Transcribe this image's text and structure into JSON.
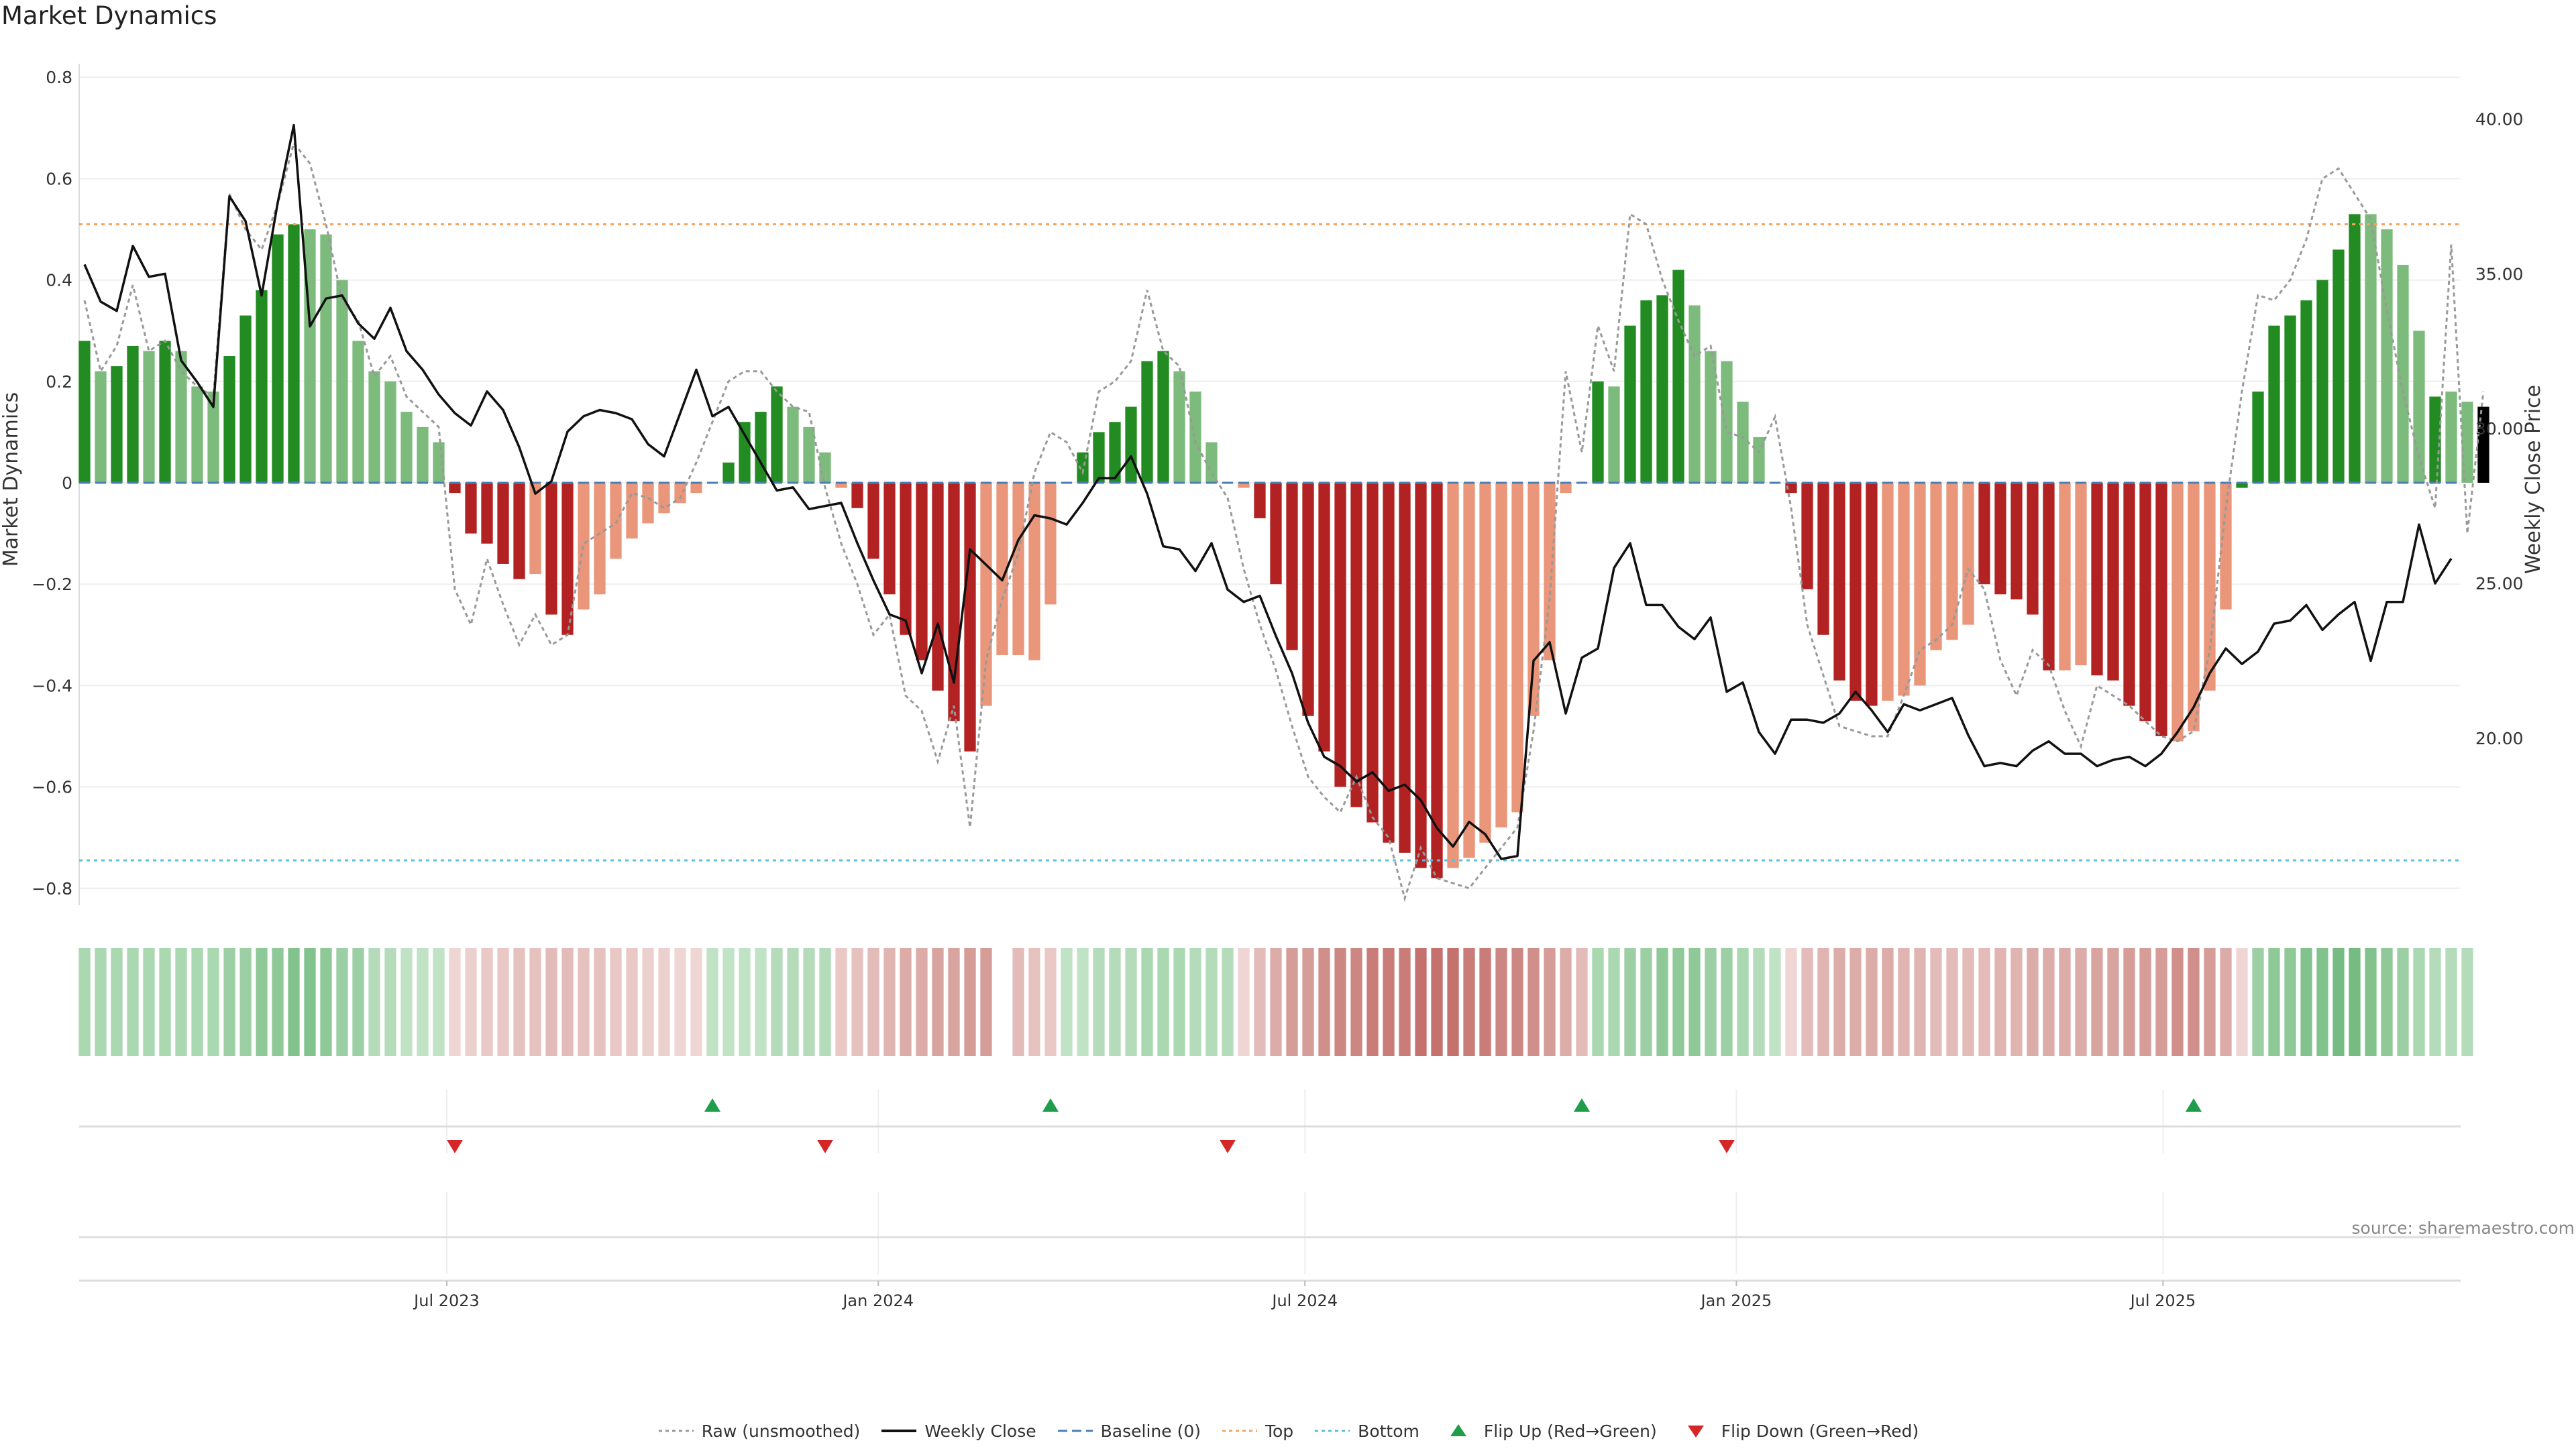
{
  "chart_data": {
    "type": "bar+line",
    "title": "Market Dynamics",
    "ylabel": "Market Dynamics",
    "y2label": "Weekly Close Price",
    "ylim": [
      -0.84,
      0.84
    ],
    "y2lim": [
      14.5,
      42.0
    ],
    "yticks": [
      0.8,
      0.6,
      0.4,
      0.2,
      0,
      -0.2,
      -0.4,
      -0.6,
      -0.8
    ],
    "ytick_labels": [
      "0.8",
      "0.6",
      "0.4",
      "0.2",
      "0",
      "−0.2",
      "−0.4",
      "−0.6",
      "−0.8"
    ],
    "y2ticks": [
      40,
      35,
      30,
      25,
      20
    ],
    "y2tick_labels": [
      "40.00",
      "35.00",
      "30.00",
      "25.00",
      "20.00"
    ],
    "x_start_week": 0,
    "x_end_week": 147,
    "xticks": [
      {
        "label": "Jul 2023",
        "week": 22.5
      },
      {
        "label": "Jan 2024",
        "week": 49.3
      },
      {
        "label": "Jul 2024",
        "week": 75.8
      },
      {
        "label": "Jan 2025",
        "week": 102.6
      },
      {
        "label": "Jul 2025",
        "week": 129.1
      }
    ],
    "top_level": 0.51,
    "bottom_level": -0.745,
    "baseline": 0,
    "bar_values": [
      0.28,
      0.22,
      0.23,
      0.27,
      0.26,
      0.28,
      0.26,
      0.19,
      0.18,
      0.25,
      0.33,
      0.38,
      0.49,
      0.51,
      0.5,
      0.49,
      0.4,
      0.28,
      0.22,
      0.2,
      0.14,
      0.11,
      0.08,
      -0.02,
      -0.1,
      -0.12,
      -0.16,
      -0.19,
      -0.18,
      -0.26,
      -0.3,
      -0.25,
      -0.22,
      -0.15,
      -0.11,
      -0.08,
      -0.06,
      -0.04,
      -0.02,
      0,
      0.04,
      0.12,
      0.14,
      0.19,
      0.15,
      0.11,
      0.06,
      -0.01,
      -0.05,
      -0.15,
      -0.22,
      -0.3,
      -0.35,
      -0.41,
      -0.47,
      -0.53,
      -0.44,
      -0.34,
      -0.34,
      -0.35,
      -0.24,
      0,
      0.06,
      0.1,
      0.12,
      0.15,
      0.24,
      0.26,
      0.22,
      0.18,
      0.08,
      0,
      -0.01,
      -0.07,
      -0.2,
      -0.33,
      -0.46,
      -0.53,
      -0.6,
      -0.64,
      -0.67,
      -0.71,
      -0.73,
      -0.76,
      -0.78,
      -0.76,
      -0.74,
      -0.71,
      -0.68,
      -0.65,
      -0.46,
      -0.35,
      -0.02,
      0,
      0.2,
      0.19,
      0.31,
      0.36,
      0.37,
      0.42,
      0.35,
      0.26,
      0.24,
      0.16,
      0.09,
      0,
      -0.02,
      -0.21,
      -0.3,
      -0.39,
      -0.43,
      -0.44,
      -0.43,
      -0.42,
      -0.4,
      -0.33,
      -0.31,
      -0.28,
      -0.2,
      -0.22,
      -0.23,
      -0.26,
      -0.37,
      -0.37,
      -0.36,
      -0.38,
      -0.39,
      -0.44,
      -0.47,
      -0.5,
      -0.51,
      -0.49,
      -0.41,
      -0.25,
      -0.01,
      0.18,
      0.31,
      0.33,
      0.36,
      0.4,
      0.46,
      0.53,
      0.53,
      0.5,
      0.43,
      0.3,
      0.17,
      0.18,
      0.16,
      0.15
    ],
    "bar_colors": [
      "#228b22",
      "#7dbb7d",
      "#228b22",
      "#228b22",
      "#7dbb7d",
      "#228b22",
      "#7dbb7d",
      "#7dbb7d",
      "#7dbb7d",
      "#228b22",
      "#228b22",
      "#228b22",
      "#228b22",
      "#228b22",
      "#7dbb7d",
      "#7dbb7d",
      "#7dbb7d",
      "#7dbb7d",
      "#7dbb7d",
      "#7dbb7d",
      "#7dbb7d",
      "#7dbb7d",
      "#7dbb7d",
      "#b22222",
      "#b22222",
      "#b22222",
      "#b22222",
      "#b22222",
      "#e9967a",
      "#b22222",
      "#b22222",
      "#e9967a",
      "#e9967a",
      "#e9967a",
      "#e9967a",
      "#e9967a",
      "#e9967a",
      "#e9967a",
      "#e9967a",
      "#e9967a",
      "#228b22",
      "#228b22",
      "#228b22",
      "#228b22",
      "#7dbb7d",
      "#7dbb7d",
      "#7dbb7d",
      "#e9967a",
      "#b22222",
      "#b22222",
      "#b22222",
      "#b22222",
      "#b22222",
      "#b22222",
      "#b22222",
      "#b22222",
      "#e9967a",
      "#e9967a",
      "#e9967a",
      "#e9967a",
      "#e9967a",
      "#e9967a",
      "#228b22",
      "#228b22",
      "#228b22",
      "#228b22",
      "#228b22",
      "#228b22",
      "#7dbb7d",
      "#7dbb7d",
      "#7dbb7d",
      "#7dbb7d",
      "#e9967a",
      "#b22222",
      "#b22222",
      "#b22222",
      "#b22222",
      "#b22222",
      "#b22222",
      "#b22222",
      "#b22222",
      "#b22222",
      "#b22222",
      "#b22222",
      "#b22222",
      "#e9967a",
      "#e9967a",
      "#e9967a",
      "#e9967a",
      "#e9967a",
      "#e9967a",
      "#e9967a",
      "#e9967a",
      "#e9967a",
      "#228b22",
      "#7dbb7d",
      "#228b22",
      "#228b22",
      "#228b22",
      "#228b22",
      "#7dbb7d",
      "#7dbb7d",
      "#7dbb7d",
      "#7dbb7d",
      "#7dbb7d",
      "#7dbb7d",
      "#b22222",
      "#b22222",
      "#b22222",
      "#b22222",
      "#b22222",
      "#b22222",
      "#e9967a",
      "#e9967a",
      "#e9967a",
      "#e9967a",
      "#e9967a",
      "#e9967a",
      "#b22222",
      "#b22222",
      "#b22222",
      "#b22222",
      "#b22222",
      "#e9967a",
      "#e9967a",
      "#b22222",
      "#b22222",
      "#b22222",
      "#b22222",
      "#b22222",
      "#e9967a",
      "#e9967a",
      "#e9967a",
      "#e9967a",
      "#228b22",
      "#228b22",
      "#228b22",
      "#228b22",
      "#228b22",
      "#228b22",
      "#228b22",
      "#228b22",
      "#7dbb7d",
      "#7dbb7d",
      "#7dbb7d",
      "#7dbb7d",
      "#228b22",
      "#7dbb7d",
      "#7dbb7d"
    ],
    "raw_values": [
      0.36,
      0.22,
      0.27,
      0.39,
      0.26,
      0.28,
      0.22,
      0.19,
      0.17,
      0.57,
      0.5,
      0.46,
      0.55,
      0.67,
      0.63,
      0.51,
      0.36,
      0.32,
      0.21,
      0.25,
      0.17,
      0.14,
      0.11,
      -0.21,
      -0.28,
      -0.15,
      -0.24,
      -0.32,
      -0.26,
      -0.32,
      -0.3,
      -0.12,
      -0.1,
      -0.08,
      -0.02,
      -0.03,
      -0.05,
      -0.03,
      0.04,
      0.12,
      0.2,
      0.22,
      0.22,
      0.18,
      0.15,
      0.14,
      -0.01,
      -0.12,
      -0.2,
      -0.3,
      -0.26,
      -0.42,
      -0.45,
      -0.55,
      -0.44,
      -0.68,
      -0.35,
      -0.23,
      -0.14,
      0.02,
      0.1,
      0.08,
      0.02,
      0.18,
      0.2,
      0.24,
      0.38,
      0.26,
      0.23,
      0.08,
      0.02,
      -0.03,
      -0.17,
      -0.28,
      -0.37,
      -0.48,
      -0.58,
      -0.62,
      -0.65,
      -0.58,
      -0.66,
      -0.7,
      -0.82,
      -0.72,
      -0.78,
      -0.79,
      -0.8,
      -0.76,
      -0.72,
      -0.68,
      -0.49,
      -0.23,
      0.22,
      0.06,
      0.31,
      0.22,
      0.53,
      0.51,
      0.4,
      0.32,
      0.25,
      0.27,
      0.1,
      0.09,
      0.06,
      0.13,
      -0.05,
      -0.28,
      -0.38,
      -0.48,
      -0.49,
      -0.5,
      -0.5,
      -0.42,
      -0.33,
      -0.31,
      -0.28,
      -0.17,
      -0.21,
      -0.35,
      -0.42,
      -0.33,
      -0.36,
      -0.45,
      -0.52,
      -0.4,
      -0.42,
      -0.44,
      -0.47,
      -0.5,
      -0.51,
      -0.49,
      -0.33,
      -0.05,
      0.18,
      0.37,
      0.36,
      0.4,
      0.48,
      0.6,
      0.62,
      0.57,
      0.52,
      0.34,
      0.18,
      0.05,
      -0.05,
      0.47,
      -0.1,
      0.18
    ],
    "close_values": [
      35.3,
      34.1,
      33.8,
      35.9,
      34.9,
      35.0,
      32.2,
      31.5,
      30.7,
      37.5,
      36.7,
      34.3,
      37.3,
      39.8,
      33.3,
      34.2,
      34.3,
      33.4,
      32.9,
      33.9,
      32.5,
      31.9,
      31.1,
      30.5,
      30.1,
      31.2,
      30.6,
      29.4,
      27.9,
      28.3,
      29.9,
      30.4,
      30.6,
      30.5,
      30.3,
      29.5,
      29.1,
      30.5,
      31.9,
      30.4,
      30.7,
      29.8,
      28.9,
      28.0,
      28.1,
      27.4,
      27.5,
      27.6,
      26.3,
      25.1,
      24.0,
      23.8,
      22.1,
      23.7,
      21.8,
      26.1,
      25.6,
      25.1,
      26.4,
      27.2,
      27.1,
      26.9,
      27.6,
      28.4,
      28.4,
      29.1,
      27.9,
      26.2,
      26.1,
      25.4,
      26.3,
      24.8,
      24.4,
      24.6,
      23.3,
      22.1,
      20.5,
      19.4,
      19.1,
      18.6,
      18.9,
      18.3,
      18.5,
      18.0,
      17.1,
      16.5,
      17.3,
      16.9,
      16.1,
      16.2,
      22.5,
      23.1,
      20.8,
      22.6,
      22.9,
      25.5,
      26.3,
      24.3,
      24.3,
      23.6,
      23.2,
      23.9,
      21.5,
      21.8,
      20.2,
      19.5,
      20.6,
      20.6,
      20.5,
      20.8,
      21.5,
      20.9,
      20.2,
      21.1,
      20.9,
      21.1,
      21.3,
      20.1,
      19.1,
      19.2,
      19.1,
      19.6,
      19.9,
      19.5,
      19.5,
      19.1,
      19.3,
      19.4,
      19.1,
      19.5,
      20.2,
      21.0,
      22.1,
      22.9,
      22.4,
      22.8,
      23.7,
      23.8,
      24.3,
      23.5,
      24.0,
      24.4,
      22.5,
      24.4,
      24.4,
      26.9,
      25.0,
      25.8
    ],
    "regime_colors": [
      "#a9d8b1",
      "#a9d8b1",
      "#a9d8b1",
      "#a9d8b1",
      "#a9d8b1",
      "#a9d8b1",
      "#a9d8b1",
      "#a9d8b1",
      "#a9d8b1",
      "#9ccfa4",
      "#9ccfa4",
      "#8fc998",
      "#8fc998",
      "#82c28d",
      "#82c28d",
      "#8fc998",
      "#9ccfa4",
      "#9ccfa4",
      "#b4dcbb",
      "#b4dcbb",
      "#c0e2c5",
      "#c0e2c5",
      "#c0e2c5",
      "#efd6d4",
      "#ecd0ce",
      "#e9c8c6",
      "#e9c8c6",
      "#e6c2bf",
      "#e6c2bf",
      "#e3bbb8",
      "#e3bbb8",
      "#e6c2bf",
      "#e6c2bf",
      "#e9c8c6",
      "#e9c8c6",
      "#ecd0ce",
      "#ecd0ce",
      "#efd6d4",
      "#efd6d4",
      "#c0e2c5",
      "#c0e2c5",
      "#c0e2c5",
      "#c0e2c5",
      "#b4dcbb",
      "#b4dcbb",
      "#b4dcbb",
      "#b4dcbb",
      "#e9c8c6",
      "#e6c2bf",
      "#e3bbb8",
      "#e0b4b1",
      "#dcaca8",
      "#dcaca8",
      "#d8a4a0",
      "#d8a4a0",
      "#d59c98",
      "#d59c98",
      "#ffffff",
      "#e3bbb8",
      "#e6c2bf",
      "#e9c8c6",
      "#c0e2c5",
      "#c0e2c5",
      "#b4dcbb",
      "#b4dcbb",
      "#b4dcbb",
      "#a9d8b1",
      "#a9d8b1",
      "#a9d8b1",
      "#b4dcbb",
      "#b4dcbb",
      "#b4dcbb",
      "#efd6d4",
      "#e3bbb8",
      "#dcaca8",
      "#d59c98",
      "#d59c98",
      "#d18f8b",
      "#cd8783",
      "#cd8783",
      "#c97c78",
      "#c97c78",
      "#c97c78",
      "#c5716d",
      "#c5716d",
      "#c5716d",
      "#c97c78",
      "#c97c78",
      "#cd8783",
      "#cd8783",
      "#d18f8b",
      "#d59c98",
      "#dcaca8",
      "#e3bbb8",
      "#a9d8b1",
      "#a9d8b1",
      "#9ccfa4",
      "#9ccfa4",
      "#8fc998",
      "#8fc998",
      "#8fc998",
      "#9ccfa4",
      "#9ccfa4",
      "#a9d8b1",
      "#b4dcbb",
      "#c0e2c5",
      "#efd6d4",
      "#e3bbb8",
      "#e0b4b1",
      "#dcaca8",
      "#dcaca8",
      "#dcaca8",
      "#dcaca8",
      "#e0b4b1",
      "#e0b4b1",
      "#e3bbb8",
      "#e3bbb8",
      "#e3bbb8",
      "#e3bbb8",
      "#e0b4b1",
      "#e0b4b1",
      "#dcaca8",
      "#dcaca8",
      "#dcaca8",
      "#dcaca8",
      "#d8a4a0",
      "#d8a4a0",
      "#d59c98",
      "#d59c98",
      "#d59c98",
      "#d18f8b",
      "#d18f8b",
      "#d59c98",
      "#dcaca8",
      "#efd6d4",
      "#9ccfa4",
      "#8fc998",
      "#8fc998",
      "#82c28d",
      "#82c28d",
      "#75bb82",
      "#75bb82",
      "#82c28d",
      "#8fc998",
      "#9ccfa4",
      "#a9d8b1",
      "#b4dcbb",
      "#b4dcbb",
      "#b4dcbb"
    ],
    "flip_up_weeks": [
      39,
      60,
      93,
      131
    ],
    "flip_down_weeks": [
      23,
      46,
      71,
      102
    ],
    "legend": [
      {
        "label": "Raw (unsmoothed)",
        "kind": "dotted-line",
        "color": "#999999"
      },
      {
        "label": "Weekly Close",
        "kind": "solid-line",
        "color": "#111111"
      },
      {
        "label": "Baseline (0)",
        "kind": "dashed-line",
        "color": "#4a7fb5"
      },
      {
        "label": "Top",
        "kind": "dotted-line",
        "color": "#f4a460"
      },
      {
        "label": "Bottom",
        "kind": "dotted-line",
        "color": "#5bc0de"
      },
      {
        "label": "Flip Up (Red→Green)",
        "kind": "triangle-up",
        "color": "#1e9e4a"
      },
      {
        "label": "Flip Down (Green→Red)",
        "kind": "triangle-down",
        "color": "#d62728"
      }
    ]
  },
  "header": {
    "title": "Market Dynamics"
  },
  "footer": {
    "source": "source: sharemaestro.com"
  },
  "colors": {
    "raw_line": "#999999",
    "close_line": "#111111",
    "baseline": "#4a7fb5",
    "top": "#f4a460",
    "bottom": "#5bc0de",
    "flip_up": "#1e9e4a",
    "flip_down": "#d62728",
    "grid": "#eeeeee",
    "axis_text": "#333333"
  }
}
